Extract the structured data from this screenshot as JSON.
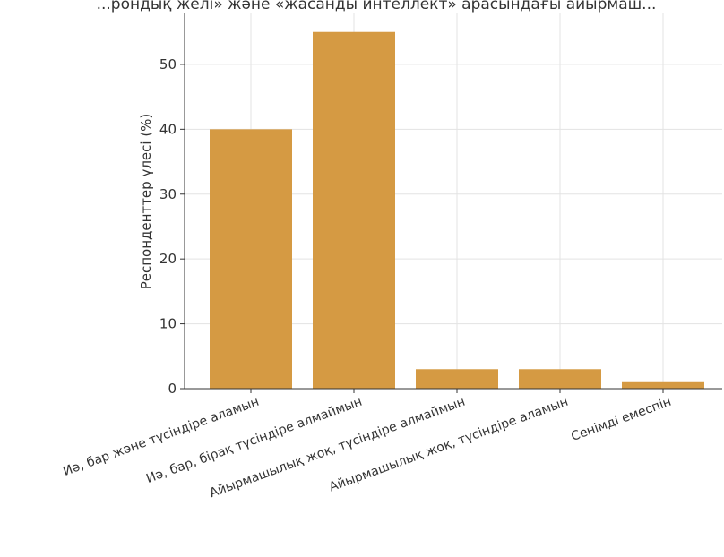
{
  "chart_data": {
    "type": "bar",
    "title": "...рондық желі» және «жасанды интеллект» арасындағы айырмаш...",
    "xlabel": "",
    "ylabel": "Респонденттер үлесі (%)",
    "categories": [
      "Иә, бар және түсіндіре аламын",
      "Иә, бар, бірақ түсіндіре алмаймын",
      "Айырмашылық жоқ, түсіндіре алмаймын",
      "Айырмашылық жоқ, түсіндіре аламын",
      "Сенімді емеспін"
    ],
    "values": [
      40,
      55,
      3,
      3,
      1
    ],
    "ylim": [
      0,
      58
    ],
    "yticks": [
      "0",
      "10",
      "20",
      "30",
      "40",
      "50"
    ],
    "grid": true,
    "bar_color": "#d59a43"
  }
}
